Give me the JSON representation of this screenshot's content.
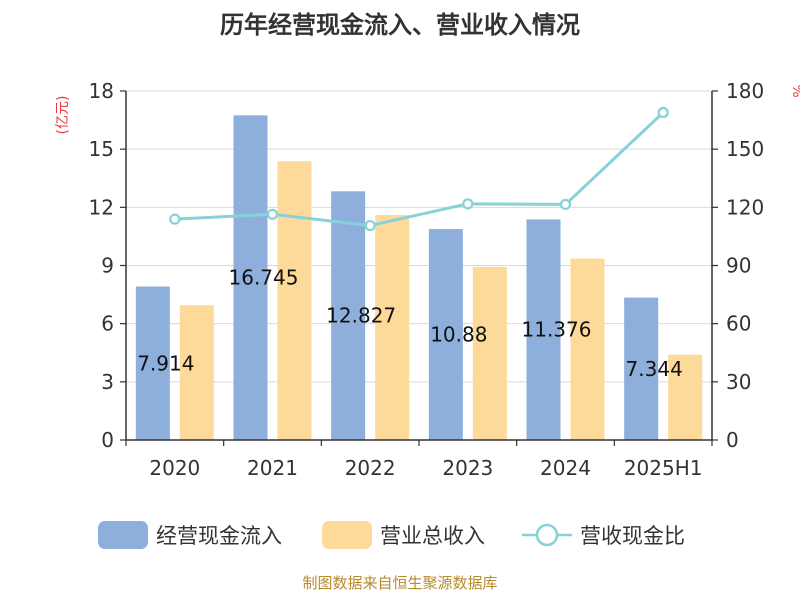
{
  "chart_data": {
    "type": "bar",
    "title": "历年经营现金流入、营业收入情况",
    "categories": [
      "2020",
      "2021",
      "2022",
      "2023",
      "2024",
      "2025H1"
    ],
    "series": [
      {
        "name": "经营现金流入",
        "type": "bar",
        "axis": "left",
        "color": "#8eaedb",
        "values": [
          7.914,
          16.745,
          12.827,
          10.88,
          11.376,
          7.344
        ],
        "labels": [
          "7.914",
          "16.745",
          "12.827",
          "10.88",
          "11.376",
          "7.344"
        ]
      },
      {
        "name": "营业总收入",
        "type": "bar",
        "axis": "left",
        "color": "#fdd99a",
        "values": [
          6.95,
          14.38,
          11.6,
          8.93,
          9.36,
          4.4
        ]
      },
      {
        "name": "营收现金比",
        "type": "line",
        "axis": "right",
        "color": "#86d2d8",
        "values": [
          113.9,
          116.4,
          110.6,
          121.8,
          121.5,
          168.9
        ]
      }
    ],
    "y_left": {
      "label": "(亿元)",
      "min": 0,
      "max": 18,
      "ticks": [
        "0",
        "3",
        "6",
        "9",
        "12",
        "15",
        "18"
      ]
    },
    "y_right": {
      "label": "%",
      "min": 0,
      "max": 180,
      "ticks": [
        "0",
        "30",
        "60",
        "90",
        "120",
        "150",
        "180"
      ]
    },
    "grid": true,
    "legend_position": "bottom"
  },
  "source": "制图数据来自恒生聚源数据库"
}
